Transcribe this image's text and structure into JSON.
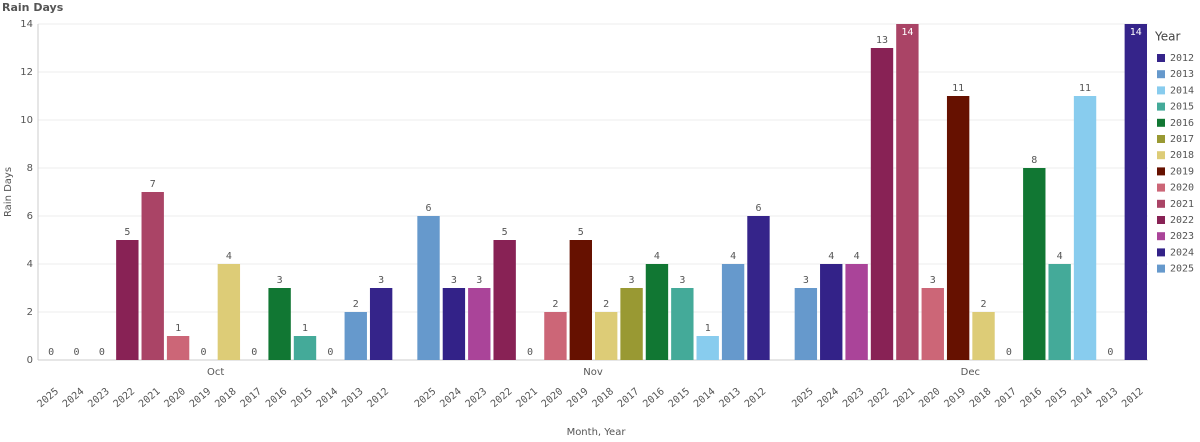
{
  "chart_data": {
    "type": "bar",
    "title": "Rain Days",
    "x_label": "Month, Year",
    "y_label": "Rain Days",
    "legend_title": "Year",
    "legend_position": "right",
    "categories": [
      "Oct",
      "Nov",
      "Dec"
    ],
    "ylim": [
      0,
      14
    ],
    "yticks": [
      0,
      2,
      4,
      6,
      8,
      10,
      12,
      14
    ],
    "grid": true,
    "series": [
      {
        "name": "2012",
        "color": "#35248a",
        "values": [
          3,
          6,
          14
        ]
      },
      {
        "name": "2013",
        "color": "#6699cc",
        "values": [
          2,
          4,
          0
        ]
      },
      {
        "name": "2014",
        "color": "#88ccee",
        "values": [
          0,
          1,
          11
        ]
      },
      {
        "name": "2015",
        "color": "#44aa99",
        "values": [
          1,
          3,
          4
        ]
      },
      {
        "name": "2016",
        "color": "#117733",
        "values": [
          3,
          4,
          8
        ]
      },
      {
        "name": "2017",
        "color": "#999933",
        "values": [
          0,
          3,
          0
        ]
      },
      {
        "name": "2018",
        "color": "#ddcc77",
        "values": [
          4,
          2,
          2
        ]
      },
      {
        "name": "2019",
        "color": "#661100",
        "values": [
          0,
          5,
          11
        ]
      },
      {
        "name": "2020",
        "color": "#cc6677",
        "values": [
          1,
          2,
          3
        ]
      },
      {
        "name": "2021",
        "color": "#aa4466",
        "values": [
          7,
          0,
          14
        ]
      },
      {
        "name": "2022",
        "color": "#882255",
        "values": [
          5,
          5,
          13
        ]
      },
      {
        "name": "2023",
        "color": "#aa4499",
        "values": [
          0,
          3,
          4
        ]
      },
      {
        "name": "2024",
        "color": "#332288",
        "values": [
          0,
          3,
          4
        ]
      },
      {
        "name": "2025",
        "color": "#6699cc",
        "values": [
          0,
          6,
          3
        ]
      }
    ]
  }
}
